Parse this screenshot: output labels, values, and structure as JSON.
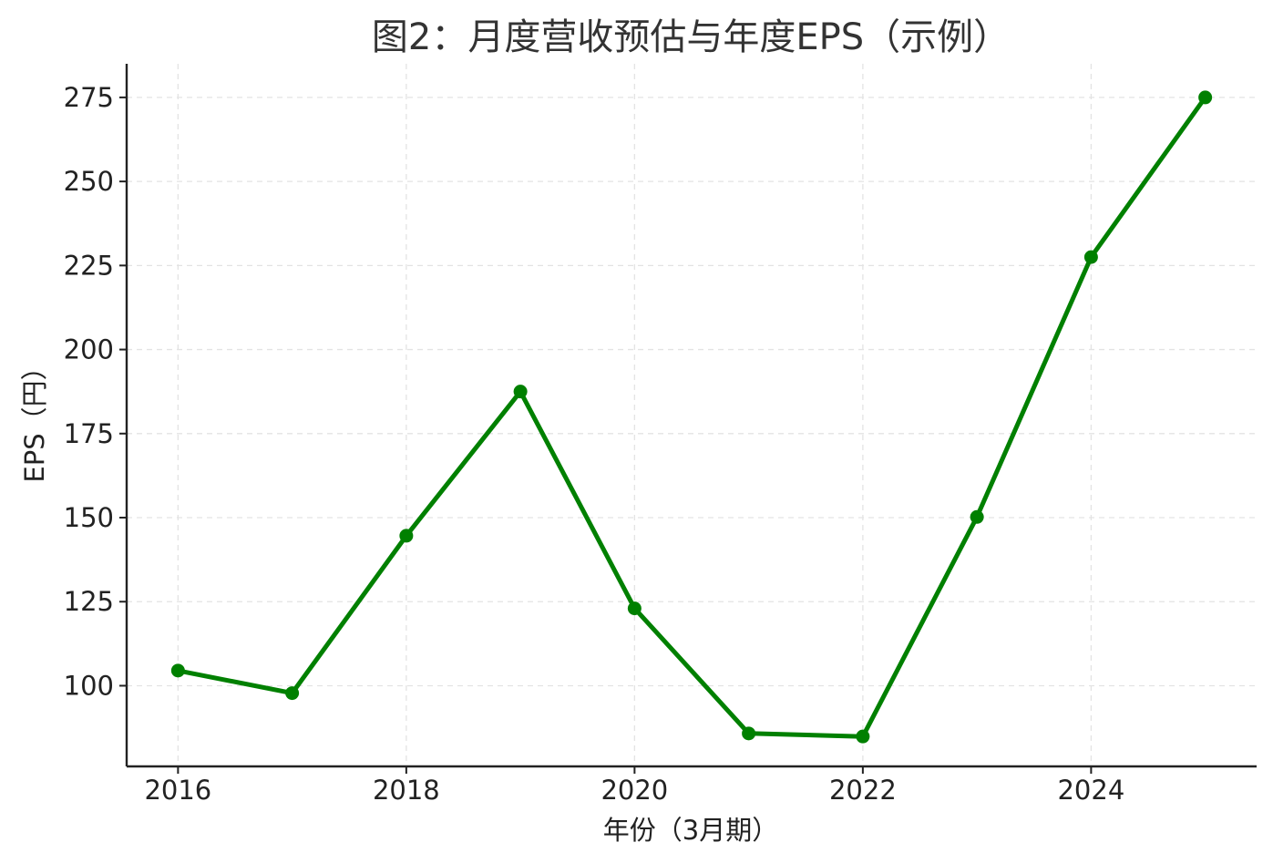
{
  "chart_data": {
    "type": "line",
    "title": "图2：月度营收预估与年度EPS（示例）",
    "xlabel": "年份（3月期）",
    "ylabel": "EPS（円）",
    "x_ticks": [
      2016,
      2018,
      2020,
      2022,
      2024
    ],
    "y_ticks": [
      100,
      125,
      150,
      175,
      200,
      225,
      250,
      275
    ],
    "xlim": [
      2015.55,
      2025.45
    ],
    "ylim": [
      76,
      285
    ],
    "grid": true,
    "series": [
      {
        "color": "#008000",
        "x": [
          2016,
          2017,
          2018,
          2019,
          2020,
          2021,
          2022,
          2023,
          2024,
          2025
        ],
        "y": [
          104.5,
          97.8,
          144.6,
          187.5,
          123.0,
          85.8,
          84.9,
          150.2,
          227.5,
          275.0
        ]
      }
    ]
  }
}
